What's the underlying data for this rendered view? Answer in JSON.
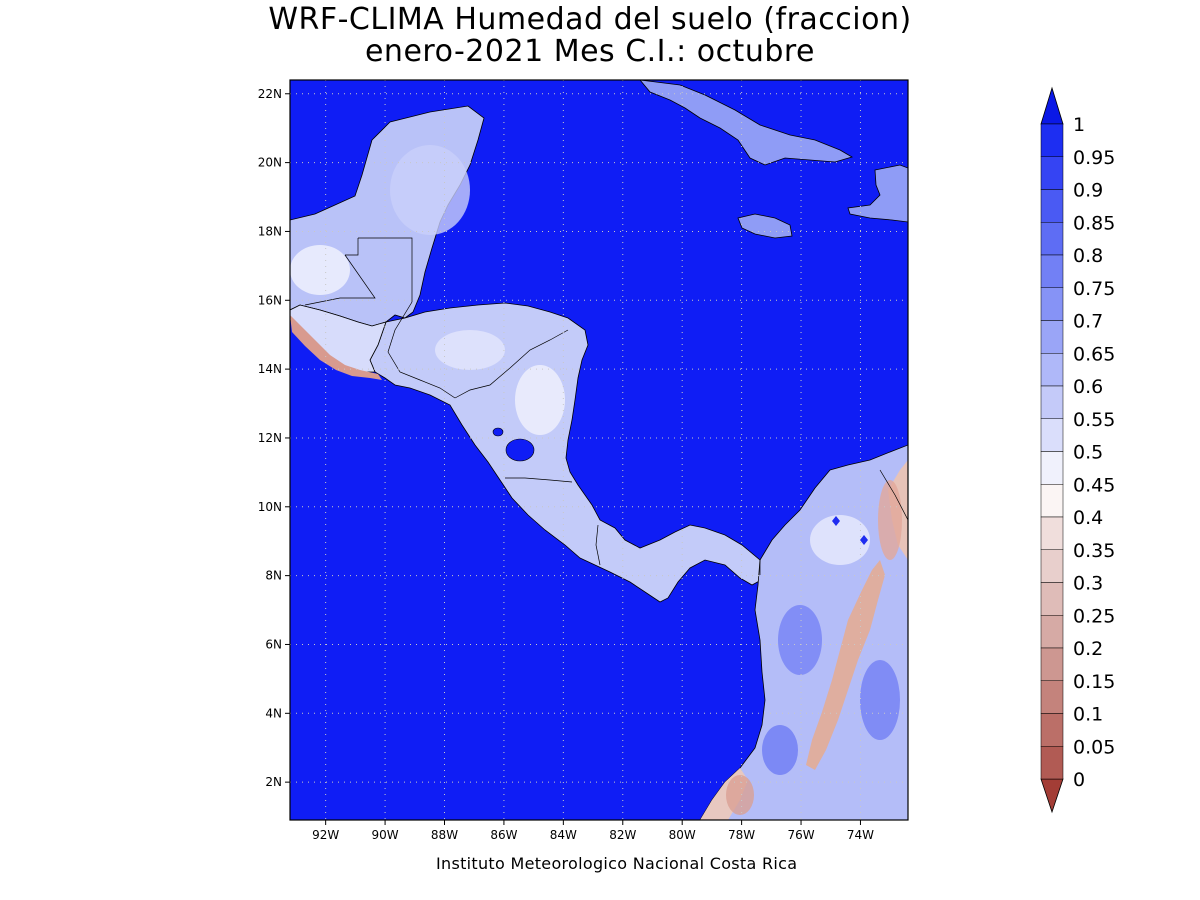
{
  "title": {
    "line1": "WRF-CLIMA Humedad del suelo (fraccion)",
    "line2": "enero-2021 Mes C.I.: octubre"
  },
  "credit": "Instituto Meteorologico Nacional Costa Rica",
  "map": {
    "lon_range": [
      -93.2,
      -72.4
    ],
    "lat_range": [
      0.9,
      22.4
    ],
    "lon_ticks": [
      {
        "value": -92,
        "label": "92W"
      },
      {
        "value": -90,
        "label": "90W"
      },
      {
        "value": -88,
        "label": "88W"
      },
      {
        "value": -86,
        "label": "86W"
      },
      {
        "value": -84,
        "label": "84W"
      },
      {
        "value": -82,
        "label": "82W"
      },
      {
        "value": -80,
        "label": "80W"
      },
      {
        "value": -78,
        "label": "78W"
      },
      {
        "value": -76,
        "label": "76W"
      },
      {
        "value": -74,
        "label": "74W"
      }
    ],
    "lat_ticks": [
      {
        "value": 2,
        "label": "2N"
      },
      {
        "value": 4,
        "label": "4N"
      },
      {
        "value": 6,
        "label": "6N"
      },
      {
        "value": 8,
        "label": "8N"
      },
      {
        "value": 10,
        "label": "10N"
      },
      {
        "value": 12,
        "label": "12N"
      },
      {
        "value": 14,
        "label": "14N"
      },
      {
        "value": 16,
        "label": "16N"
      },
      {
        "value": 18,
        "label": "18N"
      },
      {
        "value": 20,
        "label": "20N"
      },
      {
        "value": 22,
        "label": "22N"
      }
    ],
    "ocean_value": 1.0,
    "colors": {
      "ocean": "#0f1df5",
      "coast": "#000000",
      "grid": "#c8c8c8"
    }
  },
  "colorbar": {
    "labels": [
      "1",
      "0.95",
      "0.9",
      "0.85",
      "0.8",
      "0.75",
      "0.7",
      "0.65",
      "0.6",
      "0.55",
      "0.5",
      "0.45",
      "0.4",
      "0.35",
      "0.3",
      "0.25",
      "0.2",
      "0.15",
      "0.1",
      "0.05",
      "0"
    ],
    "bins": [
      "#1d2ef2",
      "#3544f3",
      "#4a5af3",
      "#5e6df4",
      "#7280f5",
      "#8693f6",
      "#9aa5f7",
      "#afb8f9",
      "#c4caf9",
      "#dadefb",
      "#f0f1fc",
      "#fbf5f4",
      "#f0dedc",
      "#e8cfcc",
      "#dfbcb8",
      "#d6aaa5",
      "#cd9791",
      "#c4837c",
      "#bb6f68",
      "#b15b54"
    ],
    "arrow_top_color": "#0a18e6",
    "arrow_bottom_color": "#a33d36"
  }
}
